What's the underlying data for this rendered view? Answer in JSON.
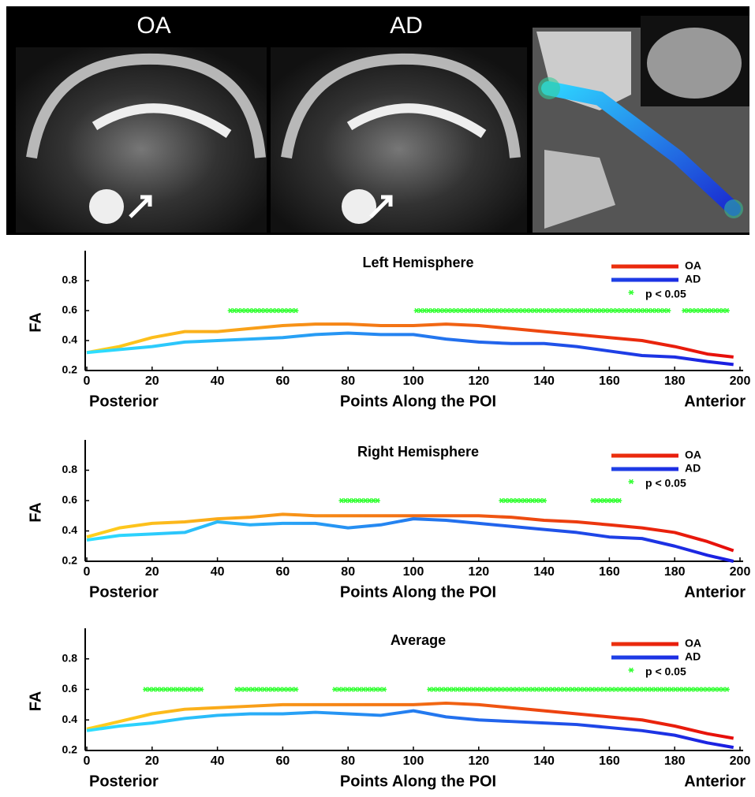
{
  "panel_labels": [
    "OA",
    "AD"
  ],
  "chart_data": [
    {
      "type": "line",
      "title": "Left Hemisphere",
      "ylabel": "FA",
      "xlabel": "Points Along the POI",
      "xlabel_left": "Posterior",
      "xlabel_right": "Anterior",
      "x": [
        0,
        10,
        20,
        30,
        40,
        50,
        60,
        70,
        80,
        90,
        100,
        110,
        120,
        130,
        140,
        150,
        160,
        170,
        180,
        190,
        198
      ],
      "xlim": [
        0,
        200
      ],
      "xticks": [
        0,
        20,
        40,
        60,
        80,
        100,
        120,
        140,
        160,
        180,
        200
      ],
      "ylim": [
        0.2,
        1.0
      ],
      "yticks": [
        0.2,
        0.4,
        0.6,
        0.8
      ],
      "series": [
        {
          "name": "OA",
          "colors": [
            "#ffd21e",
            "#e60a0a"
          ],
          "values": [
            0.32,
            0.36,
            0.42,
            0.46,
            0.46,
            0.48,
            0.5,
            0.51,
            0.51,
            0.5,
            0.5,
            0.51,
            0.5,
            0.48,
            0.46,
            0.44,
            0.42,
            0.4,
            0.36,
            0.31,
            0.29
          ]
        },
        {
          "name": "AD",
          "colors": [
            "#2ee0ff",
            "#1a1ae0"
          ],
          "values": [
            0.32,
            0.34,
            0.36,
            0.39,
            0.4,
            0.41,
            0.42,
            0.44,
            0.45,
            0.44,
            0.44,
            0.41,
            0.39,
            0.38,
            0.38,
            0.36,
            0.33,
            0.3,
            0.29,
            0.26,
            0.24
          ]
        }
      ],
      "significance": {
        "name": "p < 0.05",
        "color": "#33ff33",
        "y": 0.6,
        "ranges": [
          [
            44,
            64
          ],
          [
            101,
            178
          ],
          [
            183,
            196
          ]
        ]
      }
    },
    {
      "type": "line",
      "title": "Right Hemisphere",
      "ylabel": "FA",
      "xlabel": "Points Along the POI",
      "xlabel_left": "Posterior",
      "xlabel_right": "Anterior",
      "x": [
        0,
        10,
        20,
        30,
        40,
        50,
        60,
        70,
        80,
        90,
        100,
        110,
        120,
        130,
        140,
        150,
        160,
        170,
        180,
        190,
        198
      ],
      "xlim": [
        0,
        200
      ],
      "xticks": [
        0,
        20,
        40,
        60,
        80,
        100,
        120,
        140,
        160,
        180,
        200
      ],
      "ylim": [
        0.2,
        1.0
      ],
      "yticks": [
        0.2,
        0.4,
        0.6,
        0.8
      ],
      "series": [
        {
          "name": "OA",
          "colors": [
            "#ffd21e",
            "#e60a0a"
          ],
          "values": [
            0.36,
            0.42,
            0.45,
            0.46,
            0.48,
            0.49,
            0.51,
            0.5,
            0.5,
            0.5,
            0.5,
            0.5,
            0.5,
            0.49,
            0.47,
            0.46,
            0.44,
            0.42,
            0.39,
            0.33,
            0.27
          ]
        },
        {
          "name": "AD",
          "colors": [
            "#2ee0ff",
            "#1a1ae0"
          ],
          "values": [
            0.34,
            0.37,
            0.38,
            0.39,
            0.46,
            0.44,
            0.45,
            0.45,
            0.42,
            0.44,
            0.48,
            0.47,
            0.45,
            0.43,
            0.41,
            0.39,
            0.36,
            0.35,
            0.3,
            0.24,
            0.2
          ]
        }
      ],
      "significance": {
        "name": "p < 0.05",
        "color": "#33ff33",
        "y": 0.6,
        "ranges": [
          [
            78,
            89
          ],
          [
            127,
            140
          ],
          [
            155,
            163
          ]
        ]
      }
    },
    {
      "type": "line",
      "title": "Average",
      "ylabel": "FA",
      "xlabel": "Points Along the POI",
      "xlabel_left": "Posterior",
      "xlabel_right": "Anterior",
      "x": [
        0,
        10,
        20,
        30,
        40,
        50,
        60,
        70,
        80,
        90,
        100,
        110,
        120,
        130,
        140,
        150,
        160,
        170,
        180,
        190,
        198
      ],
      "xlim": [
        0,
        200
      ],
      "xticks": [
        0,
        20,
        40,
        60,
        80,
        100,
        120,
        140,
        160,
        180,
        200
      ],
      "ylim": [
        0.2,
        1.0
      ],
      "yticks": [
        0.2,
        0.4,
        0.6,
        0.8
      ],
      "series": [
        {
          "name": "OA",
          "colors": [
            "#ffd21e",
            "#e60a0a"
          ],
          "values": [
            0.34,
            0.39,
            0.44,
            0.47,
            0.48,
            0.49,
            0.5,
            0.5,
            0.5,
            0.5,
            0.5,
            0.51,
            0.5,
            0.48,
            0.46,
            0.44,
            0.42,
            0.4,
            0.36,
            0.31,
            0.28
          ]
        },
        {
          "name": "AD",
          "colors": [
            "#2ee0ff",
            "#1a1ae0"
          ],
          "values": [
            0.33,
            0.36,
            0.38,
            0.41,
            0.43,
            0.44,
            0.44,
            0.45,
            0.44,
            0.43,
            0.46,
            0.42,
            0.4,
            0.39,
            0.38,
            0.37,
            0.35,
            0.33,
            0.3,
            0.25,
            0.22
          ]
        }
      ],
      "significance": {
        "name": "p < 0.05",
        "color": "#33ff33",
        "y": 0.6,
        "ranges": [
          [
            18,
            35
          ],
          [
            46,
            64
          ],
          [
            76,
            91
          ],
          [
            105,
            196
          ]
        ]
      }
    }
  ]
}
